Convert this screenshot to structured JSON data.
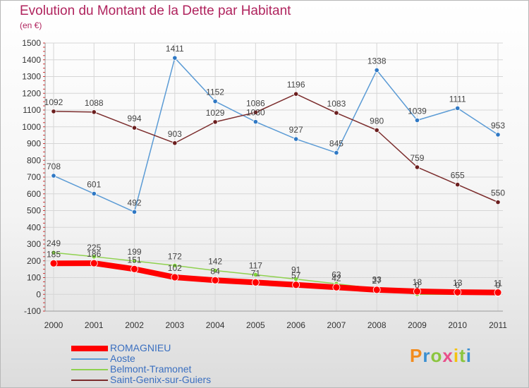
{
  "title": "Evolution du Montant de la Dette par Habitant",
  "subtitle": "(en €)",
  "logo": "Proxiti",
  "chart_data": {
    "type": "line",
    "x": [
      "2000",
      "2001",
      "2002",
      "2003",
      "2004",
      "2005",
      "2006",
      "2007",
      "2008",
      "2009",
      "2010",
      "2011"
    ],
    "ylim": [
      -100,
      1500
    ],
    "yticks": [
      -100,
      0,
      100,
      200,
      300,
      400,
      500,
      600,
      700,
      800,
      900,
      1000,
      1100,
      1200,
      1300,
      1400,
      1500
    ],
    "grid": true,
    "legend_position": "bottom-left",
    "series": [
      {
        "name": "ROMAGNIEU",
        "color": "#ff0000",
        "values": [
          185,
          186,
          151,
          102,
          84,
          71,
          57,
          42,
          27,
          18,
          13,
          11
        ]
      },
      {
        "name": "Aoste",
        "color": "#5b9bd5",
        "values": [
          708,
          601,
          492,
          1411,
          1152,
          1030,
          927,
          845,
          1338,
          1039,
          1111,
          953
        ]
      },
      {
        "name": "Belmont-Tramonet",
        "color": "#8fd14f",
        "values": [
          249,
          225,
          199,
          172,
          142,
          117,
          91,
          63,
          33,
          0,
          0,
          0
        ]
      },
      {
        "name": "Saint-Genix-sur-Guiers",
        "color": "#7b2c2c",
        "values": [
          1092,
          1088,
          994,
          903,
          1029,
          1086,
          1196,
          1083,
          980,
          759,
          655,
          550
        ]
      }
    ]
  }
}
